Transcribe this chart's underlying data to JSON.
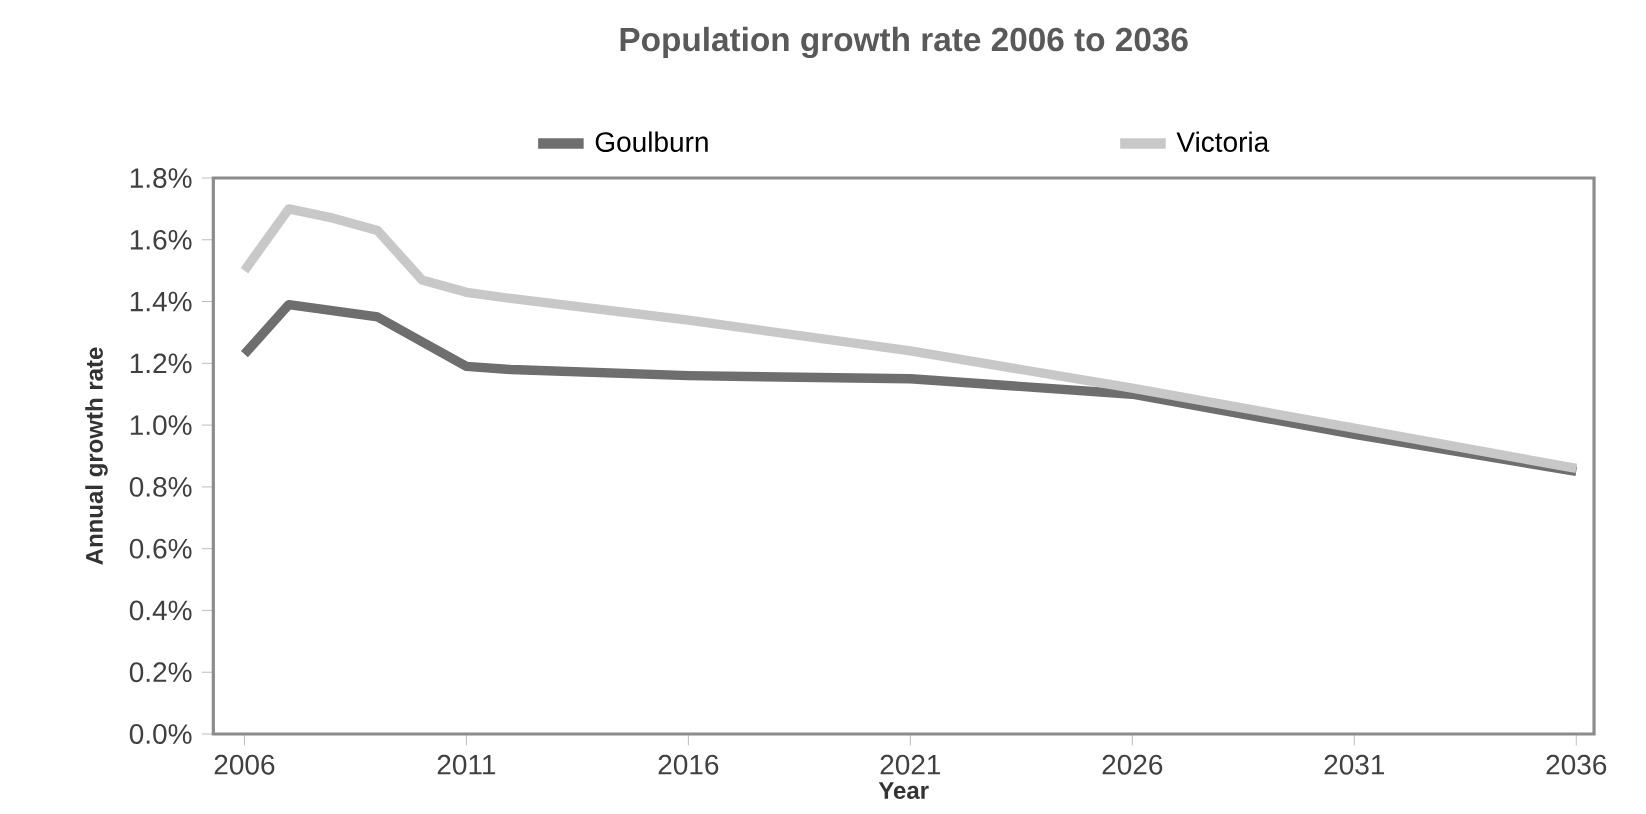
{
  "chart_data": {
    "type": "line",
    "title": "Population growth rate 2006 to 2036",
    "xlabel": "Year",
    "ylabel": "Annual growth rate",
    "x": [
      2006,
      2007,
      2008,
      2009,
      2010,
      2011,
      2012,
      2016,
      2021,
      2026,
      2031,
      2036
    ],
    "series": [
      {
        "name": "Goulburn",
        "color": "#6e6e6e",
        "values": [
          1.23,
          1.39,
          1.37,
          1.35,
          1.27,
          1.19,
          1.18,
          1.16,
          1.15,
          1.1,
          0.97,
          0.85
        ]
      },
      {
        "name": "Victoria",
        "color": "#c8c8c8",
        "values": [
          1.5,
          1.7,
          1.67,
          1.63,
          1.47,
          1.43,
          1.41,
          1.34,
          1.24,
          1.12,
          0.99,
          0.86
        ]
      }
    ],
    "xlim": [
      2005.3,
      2036.4
    ],
    "xticks": [
      2006,
      2011,
      2016,
      2021,
      2026,
      2031,
      2036
    ],
    "ylim": [
      0,
      1.8
    ],
    "yticks": [
      {
        "value": 0,
        "label": "0.0%"
      },
      {
        "value": 0.2,
        "label": "0.2%"
      },
      {
        "value": 0.4,
        "label": "0.4%"
      },
      {
        "value": 0.6,
        "label": "0.6%"
      },
      {
        "value": 0.8,
        "label": "0.8%"
      },
      {
        "value": 1.0,
        "label": "1.0%"
      },
      {
        "value": 1.2,
        "label": "1.2%"
      },
      {
        "value": 1.4,
        "label": "1.4%"
      },
      {
        "value": 1.6,
        "label": "1.6%"
      },
      {
        "value": 1.8,
        "label": "1.8%"
      }
    ],
    "legend": "top",
    "grid": false,
    "marker": "none",
    "line_style": "solid"
  }
}
